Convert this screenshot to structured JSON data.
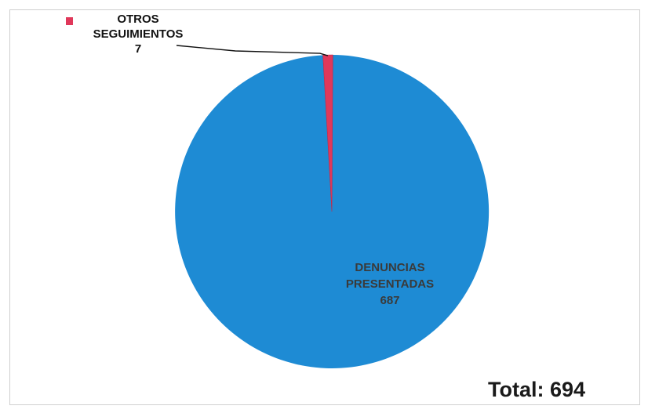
{
  "chart_data": {
    "type": "pie",
    "slices": [
      {
        "label_lines": [
          "DENUNCIAS",
          "PRESENTADAS",
          "687"
        ],
        "value": 687,
        "color": "#1e8bd4"
      },
      {
        "label_lines": [
          "OTROS",
          "SEGUIMIENTOS",
          "7"
        ],
        "value": 7,
        "color": "#e0385a"
      }
    ],
    "total_text": "Total: 694",
    "label_color_inside": "#3a3a3a",
    "label_color_outside": "#111111"
  }
}
